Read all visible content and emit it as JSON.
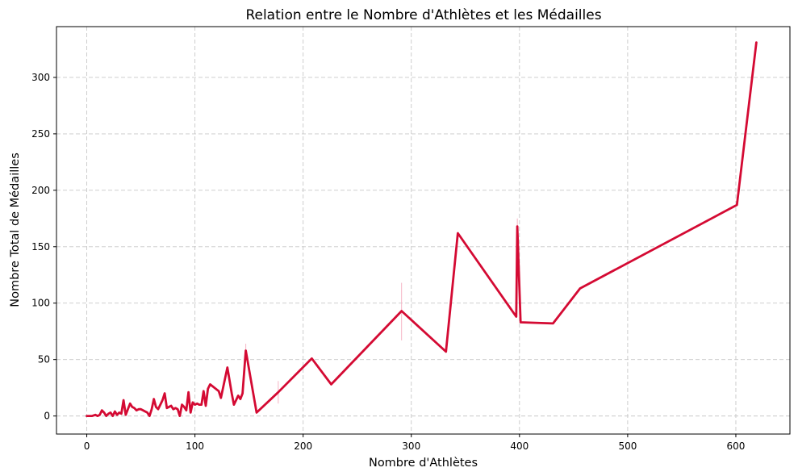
{
  "chart_data": {
    "type": "line",
    "title": "Relation entre le Nombre d'Athlètes et les Médailles",
    "xlabel": "Nombre d'Athlètes",
    "ylabel": "Nombre Total de Médailles",
    "xlim": [
      -28,
      650
    ],
    "ylim": [
      -16,
      345
    ],
    "xticks": [
      0,
      100,
      200,
      300,
      400,
      500,
      600
    ],
    "yticks": [
      0,
      50,
      100,
      150,
      200,
      250,
      300
    ],
    "grid": true,
    "legend": "none",
    "colors": {
      "line": "#d40a33",
      "confidence_band": "#f5b4c4"
    },
    "series": [
      {
        "x": [
          0,
          5,
          8,
          10,
          12,
          14,
          16,
          18,
          20,
          22,
          24,
          26,
          28,
          30,
          32,
          34,
          36,
          38,
          40,
          42,
          44,
          46,
          48,
          50,
          52,
          54,
          56,
          58,
          60,
          62,
          64,
          66,
          68,
          70,
          72,
          74,
          76,
          78,
          80,
          82,
          84,
          86,
          88,
          90,
          92,
          94,
          96,
          98,
          100,
          102,
          104,
          106,
          108,
          110,
          112,
          114,
          122,
          124,
          130,
          134,
          136,
          138,
          140,
          142,
          144,
          147,
          157,
          177,
          208,
          226,
          291,
          332,
          343,
          397,
          398,
          401,
          431,
          456,
          601,
          619
        ],
        "y": [
          0,
          0,
          1,
          0,
          1,
          5,
          3,
          0,
          2,
          3,
          0,
          4,
          1,
          3,
          2,
          14,
          1,
          6,
          11,
          8,
          7,
          5,
          6,
          6,
          5,
          4,
          3,
          0,
          6,
          15,
          8,
          6,
          10,
          14,
          20,
          7,
          8,
          9,
          6,
          7,
          6,
          0,
          10,
          8,
          5,
          21,
          3,
          12,
          10,
          11,
          10,
          10,
          22,
          9,
          24,
          28,
          22,
          16,
          43,
          20,
          10,
          14,
          18,
          15,
          20,
          58,
          3,
          21,
          51,
          28,
          93,
          57,
          162,
          88,
          168,
          83,
          82,
          113,
          187,
          331
        ]
      }
    ],
    "confidence_intervals": [
      {
        "x": 147,
        "low": 52,
        "high": 64
      },
      {
        "x": 177,
        "low": 11,
        "high": 31
      },
      {
        "x": 291,
        "low": 67,
        "high": 118
      },
      {
        "x": 398,
        "low": 160,
        "high": 175
      }
    ]
  }
}
